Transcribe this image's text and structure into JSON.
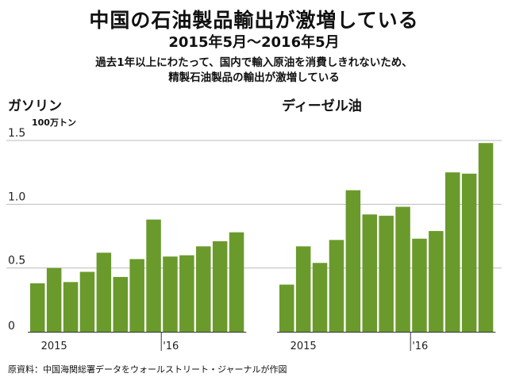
{
  "title": "中国の石油製品輸出が激増している",
  "subtitle": "2015年5月～2016年5月",
  "description_lines": [
    "過去1年以上にわたって、国内で輸入原油を消費しきれないため、",
    "精製石油製品の輸出が激増している"
  ],
  "unit_label": "100万トン",
  "source": "原資料：中国海関総署データをウォールストリート・ジャーナルが作図",
  "colors": {
    "bar": "#6a9a2c",
    "grid": "#bbbbbb",
    "axis": "#333333"
  },
  "chart_data": {
    "type": "bar",
    "ylim": [
      0,
      1.5
    ],
    "y_ticks": [
      0,
      0.5,
      1.0,
      1.5
    ],
    "y_tick_labels": [
      "0",
      "0.5",
      "1.0",
      "1.5"
    ],
    "grid": true,
    "categories": [
      "2015-05",
      "2015-06",
      "2015-07",
      "2015-08",
      "2015-09",
      "2015-10",
      "2015-11",
      "2015-12",
      "2016-01",
      "2016-02",
      "2016-03",
      "2016-04",
      "2016-05"
    ],
    "x_tick_labels": [
      {
        "index": 1,
        "label": "2015"
      },
      {
        "index": 8,
        "label": "'16"
      }
    ],
    "panels": [
      {
        "title": "ガソリン",
        "values": [
          0.38,
          0.5,
          0.39,
          0.47,
          0.62,
          0.43,
          0.57,
          0.88,
          0.59,
          0.6,
          0.67,
          0.71,
          0.78
        ]
      },
      {
        "title": "ディーゼル油",
        "values": [
          0.37,
          0.67,
          0.54,
          0.72,
          1.11,
          0.92,
          0.91,
          0.98,
          0.73,
          0.79,
          1.25,
          1.24,
          1.48
        ]
      }
    ]
  }
}
